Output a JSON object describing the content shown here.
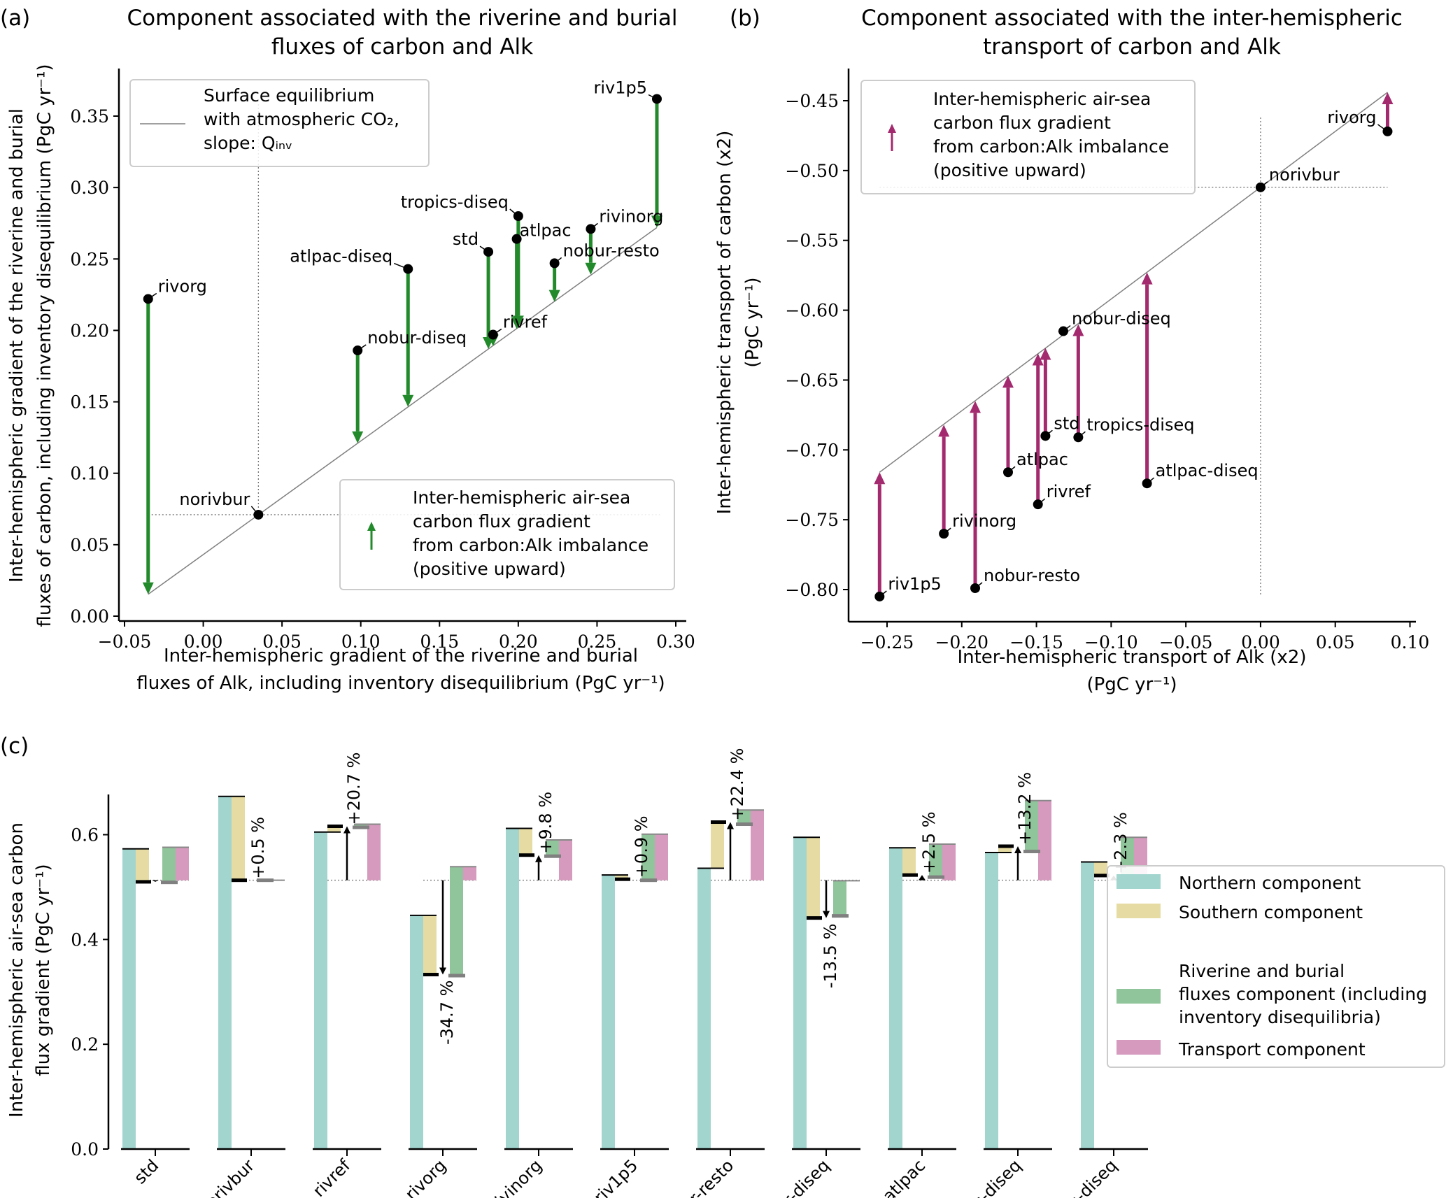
{
  "panel_labels": {
    "a": "(a)",
    "b": "(b)",
    "c": "(c)"
  },
  "colors": {
    "green_arrow": "#238a2c",
    "magenta_arrow": "#a32a6e",
    "northern": "#a3d5cf",
    "southern": "#e6dca3",
    "riverine": "#90c49a",
    "transport": "#d59abd",
    "equilibrium_line": "#808080"
  },
  "chart_data": [
    {
      "type": "scatter",
      "title_lines": [
        "Component associated with the riverine and burial",
        "fluxes of carbon and Alk"
      ],
      "xlabel_lines": [
        "Inter-hemispheric gradient of the riverine and burial",
        "fluxes of Alk, including inventory disequilibrium (PgC yr⁻¹)"
      ],
      "ylabel_lines": [
        "Inter-hemispheric gradient of the riverine and burial",
        "fluxes of carbon, including inventory disequilibrium (PgC yr⁻¹)"
      ],
      "xlim": [
        -0.055,
        0.305
      ],
      "ylim": [
        -0.005,
        0.385
      ],
      "xticks": [
        "−0.05",
        "0.00",
        "0.05",
        "0.10",
        "0.15",
        "0.20",
        "0.25",
        "0.30"
      ],
      "xtick_values": [
        -0.05,
        0,
        0.05,
        0.1,
        0.15,
        0.2,
        0.25,
        0.3
      ],
      "yticks": [
        "0.00",
        "0.05",
        "0.10",
        "0.15",
        "0.20",
        "0.25",
        "0.30",
        "0.35"
      ],
      "ytick_values": [
        0,
        0.05,
        0.1,
        0.15,
        0.2,
        0.25,
        0.3,
        0.35
      ],
      "reference": {
        "label": "norivbur",
        "x": 0.035,
        "y": 0.071
      },
      "equilibrium_line": {
        "x": [
          -0.035,
          0.288
        ],
        "y": [
          0.0153,
          0.272
        ]
      },
      "points": [
        {
          "label": "rivorg",
          "x": -0.035,
          "y": 0.222,
          "y_eq": 0.0153
        },
        {
          "label": "norivbur",
          "x": 0.035,
          "y": 0.071,
          "y_eq": 0.071
        },
        {
          "label": "nobur-diseq",
          "x": 0.098,
          "y": 0.186,
          "y_eq": 0.121
        },
        {
          "label": "atlpac-diseq",
          "x": 0.13,
          "y": 0.243,
          "y_eq": 0.1465
        },
        {
          "label": "std",
          "x": 0.181,
          "y": 0.255,
          "y_eq": 0.187
        },
        {
          "label": "rivref",
          "x": 0.184,
          "y": 0.197,
          "y_eq": 0.189
        },
        {
          "label": "atlpac",
          "x": 0.199,
          "y": 0.264,
          "y_eq": 0.201
        },
        {
          "label": "tropics-diseq",
          "x": 0.2,
          "y": 0.28,
          "y_eq": 0.202
        },
        {
          "label": "nobur-resto",
          "x": 0.223,
          "y": 0.247,
          "y_eq": 0.22
        },
        {
          "label": "rivinorg",
          "x": 0.246,
          "y": 0.271,
          "y_eq": 0.239
        },
        {
          "label": "riv1p5",
          "x": 0.288,
          "y": 0.362,
          "y_eq": 0.272
        }
      ],
      "legend_line": [
        "Surface equilibrium",
        "with atmospheric CO₂,",
        "slope: Qᵢₙᵥ"
      ],
      "legend_arrow": [
        "Inter-hemispheric air-sea",
        "carbon flux gradient",
        "from carbon:Alk imbalance",
        "(positive upward)"
      ]
    },
    {
      "type": "scatter",
      "title_lines": [
        "Component associated with the inter-hemispheric",
        "transport of carbon and Alk"
      ],
      "xlabel_lines": [
        "Inter-hemispheric transport of Alk (x2)",
        "(PgC yr⁻¹)"
      ],
      "ylabel_lines": [
        "Inter-hemispheric transport of carbon (x2)",
        "(PgC yr⁻¹)"
      ],
      "xlim": [
        -0.27,
        0.105
      ],
      "ylim": [
        -0.83,
        -0.43
      ],
      "xticks": [
        "−0.25",
        "−0.20",
        "−0.15",
        "−0.10",
        "−0.05",
        "0.00",
        "0.05",
        "0.10"
      ],
      "xtick_values": [
        -0.25,
        -0.2,
        -0.15,
        -0.1,
        -0.05,
        0,
        0.05,
        0.1
      ],
      "yticks": [
        "−0.45",
        "−0.50",
        "−0.55",
        "−0.60",
        "−0.65",
        "−0.70",
        "−0.75",
        "−0.80"
      ],
      "ytick_values": [
        -0.45,
        -0.5,
        -0.55,
        -0.6,
        -0.65,
        -0.7,
        -0.75,
        -0.8
      ],
      "reference": {
        "label": "norivbur",
        "x": 0.0,
        "y": -0.512
      },
      "equilibrium_line": {
        "x": [
          -0.255,
          0.085
        ],
        "y": [
          -0.716,
          -0.444
        ]
      },
      "points": [
        {
          "label": "rivorg",
          "x": 0.085,
          "y": -0.472,
          "y_eq": -0.444
        },
        {
          "label": "norivbur",
          "x": 0.0,
          "y": -0.512,
          "y_eq": -0.512
        },
        {
          "label": "nobur-diseq",
          "x": -0.132,
          "y": -0.615,
          "y_eq": -0.618
        },
        {
          "label": "tropics-diseq",
          "x": -0.122,
          "y": -0.691,
          "y_eq": -0.61
        },
        {
          "label": "std",
          "x": -0.144,
          "y": -0.69,
          "y_eq": -0.627
        },
        {
          "label": "atlpac",
          "x": -0.169,
          "y": -0.716,
          "y_eq": -0.647
        },
        {
          "label": "rivref",
          "x": -0.149,
          "y": -0.739,
          "y_eq": -0.631
        },
        {
          "label": "atlpac-diseq",
          "x": -0.076,
          "y": -0.724,
          "y_eq": -0.573
        },
        {
          "label": "rivinorg",
          "x": -0.212,
          "y": -0.76,
          "y_eq": -0.682
        },
        {
          "label": "nobur-resto",
          "x": -0.191,
          "y": -0.799,
          "y_eq": -0.665
        },
        {
          "label": "riv1p5",
          "x": -0.255,
          "y": -0.805,
          "y_eq": -0.716
        }
      ],
      "legend_arrow": [
        "Inter-hemispheric air-sea",
        "carbon flux gradient",
        "from carbon:Alk imbalance",
        "(positive upward)"
      ]
    },
    {
      "type": "bar",
      "ylabel_lines": [
        "Inter-hemispheric air-sea carbon",
        "flux gradient (PgC yr⁻¹)"
      ],
      "ylim": [
        0,
        0.68
      ],
      "yticks": [
        "0.0",
        "0.2",
        "0.4",
        "0.6"
      ],
      "ytick_values": [
        0,
        0.2,
        0.4,
        0.6
      ],
      "reference_value": 0.513,
      "categories": [
        "std",
        "norivbur",
        "rivref",
        "rivorg",
        "rivinorg",
        "riv1p5",
        "nobur-resto",
        "nobur-diseq",
        "atlpac",
        "atlpac-diseq",
        "tropics-diseq"
      ],
      "northern": [
        0.573,
        0.673,
        0.605,
        0.446,
        0.612,
        0.523,
        0.536,
        0.595,
        0.575,
        0.566,
        0.548
      ],
      "total": [
        0.51,
        0.513,
        0.616,
        0.333,
        0.561,
        0.515,
        0.624,
        0.441,
        0.523,
        0.578,
        0.522
      ],
      "riverine_level": [
        0.509,
        0.513,
        0.614,
        0.331,
        0.559,
        0.513,
        0.62,
        0.445,
        0.519,
        0.568,
        0.518
      ],
      "transport_level": [
        0.576,
        0.513,
        0.62,
        0.539,
        0.59,
        0.601,
        0.647,
        0.512,
        0.582,
        0.665,
        0.595
      ],
      "percent_change": [
        "",
        "+0.5 %",
        "+20.7 %",
        "-34.7 %",
        "+9.8 %",
        "+0.9 %",
        "+22.4 %",
        "-13.5 %",
        "+2.5 %",
        "+13.2 %",
        "+2.3 %"
      ],
      "legend": [
        "Northern component",
        "Southern component",
        "Riverine and burial",
        "fluxes component (including",
        "inventory disequilibria)",
        "Transport component"
      ]
    }
  ]
}
